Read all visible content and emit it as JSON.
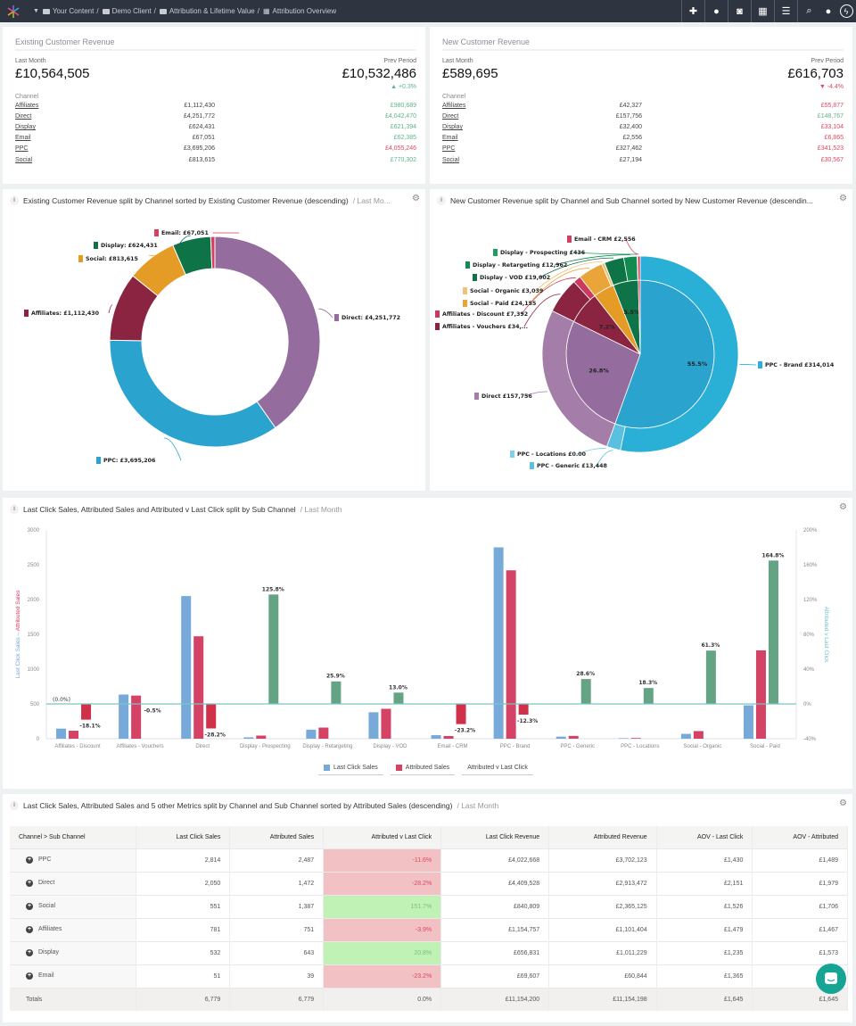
{
  "topbar": {
    "breadcrumbs": [
      "Your Content",
      "Demo Client",
      "Attribution & Lifetime Value",
      "Attribution Overview"
    ],
    "icons": [
      "plus-icon",
      "clock-icon",
      "camera-icon",
      "calendar-icon",
      "filter-icon",
      "search-icon",
      "user-icon",
      "bolt-icon"
    ]
  },
  "kpis": [
    {
      "title": "Existing Customer Revenue",
      "period_label": "Last Month",
      "value": "£10,564,505",
      "prev_label": "Prev Period",
      "prev_value": "£10,532,486",
      "change": "+0.3%",
      "change_dir": "up",
      "channel_header": "Channel",
      "channels": [
        {
          "name": "Affiliates",
          "value": "£1,112,430",
          "prev": "£980,689",
          "good": true
        },
        {
          "name": "Direct",
          "value": "£4,251,772",
          "prev": "£4,042,470",
          "good": true
        },
        {
          "name": "Display",
          "value": "£624,431",
          "prev": "£621,394",
          "good": true
        },
        {
          "name": "Email",
          "value": "£67,051",
          "prev": "£62,385",
          "good": true
        },
        {
          "name": "PPC",
          "value": "£3,695,206",
          "prev": "£4,055,246",
          "good": false
        },
        {
          "name": "Social",
          "value": "£813,615",
          "prev": "£770,302",
          "good": true
        }
      ]
    },
    {
      "title": "New Customer Revenue",
      "period_label": "Last Month",
      "value": "£589,695",
      "prev_label": "Prev Period",
      "prev_value": "£616,703",
      "change": "-4.4%",
      "change_dir": "down",
      "channel_header": "Channel",
      "channels": [
        {
          "name": "Affiliates",
          "value": "£42,327",
          "prev": "£55,877",
          "good": false
        },
        {
          "name": "Direct",
          "value": "£157,756",
          "prev": "£148,767",
          "good": true
        },
        {
          "name": "Display",
          "value": "£32,400",
          "prev": "£33,104",
          "good": false
        },
        {
          "name": "Email",
          "value": "£2,556",
          "prev": "£6,865",
          "good": false
        },
        {
          "name": "PPC",
          "value": "£327,462",
          "prev": "£341,523",
          "good": false
        },
        {
          "name": "Social",
          "value": "£27,194",
          "prev": "£30,567",
          "good": false
        }
      ]
    }
  ],
  "colors": {
    "good": "#5fb38a",
    "bad": "#e0475f",
    "Direct": "#946c9e",
    "PPC": "#2aa4cf",
    "Affiliates": "#8a2440",
    "Social": "#e59c26",
    "Display": "#0e7346",
    "Email": "#d63f5f",
    "last_click": "#77a9d9",
    "attributed": "#d44266",
    "ratio_pos": "#64a384",
    "ratio_neg": "#d0304a",
    "zero_line": "#7fc3c3"
  },
  "chart_data": [
    {
      "type": "pie",
      "variant": "donut",
      "title": "Existing Customer Revenue split by Channel sorted by Existing Customer Revenue (descending)",
      "subtitle": "/ Last Mo...",
      "slices": [
        {
          "label": "Direct: £4,251,772",
          "name": "Direct",
          "value": 4251772
        },
        {
          "label": "PPC: £3,695,206",
          "name": "PPC",
          "value": 3695206
        },
        {
          "label": "Affiliates: £1,112,430",
          "name": "Affiliates",
          "value": 1112430
        },
        {
          "label": "Social: £813,615",
          "name": "Social",
          "value": 813615
        },
        {
          "label": "Display: £624,431",
          "name": "Display",
          "value": 624431
        },
        {
          "label": "Email: £67,051",
          "name": "Email",
          "value": 67051
        }
      ]
    },
    {
      "type": "pie",
      "variant": "sunburst",
      "title": "New Customer Revenue split by Channel and Sub Channel sorted by New Customer Revenue (descendin...",
      "inner": [
        {
          "name": "PPC",
          "value": 327462,
          "pct": "55.5%"
        },
        {
          "name": "Direct",
          "value": 157756,
          "pct": "26.8%"
        },
        {
          "name": "Affiliates",
          "value": 42327,
          "pct": "7.2%"
        },
        {
          "name": "Social",
          "value": 27194,
          "pct": ""
        },
        {
          "name": "Display",
          "value": 32400,
          "pct": "5.5%"
        },
        {
          "name": "Email",
          "value": 2556,
          "pct": ""
        }
      ],
      "outer": [
        {
          "parent": "PPC",
          "label": "PPC - Brand £314,014",
          "value": 314014
        },
        {
          "parent": "PPC",
          "label": "PPC - Generic £13,448",
          "value": 13448
        },
        {
          "parent": "PPC",
          "label": "PPC - Locations £0.00",
          "value": 0
        },
        {
          "parent": "Direct",
          "label": "Direct £157,756",
          "value": 157756
        },
        {
          "parent": "Affiliates",
          "label": "Affiliates - Vouchers £34,...",
          "value": 34935
        },
        {
          "parent": "Affiliates",
          "label": "Affiliates - Discount £7,392",
          "value": 7392
        },
        {
          "parent": "Social",
          "label": "Social - Paid £24,155",
          "value": 24155
        },
        {
          "parent": "Social",
          "label": "Social - Organic £3,039",
          "value": 3039
        },
        {
          "parent": "Display",
          "label": "Display - VOD £19,002",
          "value": 19002
        },
        {
          "parent": "Display",
          "label": "Display - Retargeting £12,962",
          "value": 12962
        },
        {
          "parent": "Display",
          "label": "Display - Prospecting £436",
          "value": 436
        },
        {
          "parent": "Email",
          "label": "Email - CRM £2,556",
          "value": 2556
        }
      ]
    },
    {
      "type": "bar",
      "title": "Last Click Sales, Attributed Sales and Attributed v Last Click split by Sub Channel",
      "subtitle": "/ Last Month",
      "ylabel_left": [
        "Last Click Sales",
        "Attributed Sales"
      ],
      "ylabel_right": "Attributed v Last Click",
      "ylim": [
        0,
        3000
      ],
      "yticks": [
        0,
        500,
        1000,
        1500,
        2000,
        2500,
        3000
      ],
      "y2lim": [
        -40,
        200
      ],
      "y2ticks": [
        "-40%",
        "0%",
        "40%",
        "80%",
        "120%",
        "160%",
        "200%"
      ],
      "annotation": "(0.0%)",
      "categories": [
        "Affiliates - Discount",
        "Affiliates - Vouchers",
        "Direct",
        "Display - Prospecting",
        "Display - Retargeting",
        "Display - VOD",
        "Email - CRM",
        "PPC - Brand",
        "PPC - Generic",
        "PPC - Locations",
        "Social - Organic",
        "Social - Paid"
      ],
      "series": [
        {
          "name": "Last Click Sales",
          "values": [
            145,
            635,
            2050,
            20,
            130,
            380,
            51,
            2750,
            30,
            8,
            70,
            480
          ]
        },
        {
          "name": "Attributed Sales",
          "values": [
            115,
            620,
            1472,
            45,
            160,
            430,
            39,
            2420,
            40,
            10,
            110,
            1270
          ]
        },
        {
          "name": "Attributed v Last Click",
          "axis": "right",
          "values": [
            -18.1,
            -0.5,
            -28.2,
            125.8,
            25.9,
            13.0,
            -23.2,
            -12.3,
            28.6,
            18.3,
            61.3,
            164.8
          ],
          "labels": [
            "-18.1%",
            "-0.5%",
            "-28.2%",
            "125.8%",
            "25.9%",
            "13.0%",
            "-23.2%",
            "-12.3%",
            "28.6%",
            "18.3%",
            "61.3%",
            "164.8%"
          ]
        }
      ]
    }
  ],
  "table": {
    "title": "Last Click Sales, Attributed Sales and 5 other Metrics split by Channel and Sub Channel sorted by Attributed Sales (descending)",
    "subtitle": "/ Last Month",
    "columns": [
      "Channel > Sub Channel",
      "Last Click Sales",
      "Attributed Sales",
      "Attributed v Last Click",
      "Last Click Revenue",
      "Attributed Revenue",
      "AOV - Last Click",
      "AOV - Attributed"
    ],
    "rows": [
      [
        "PPC",
        "2,814",
        "2,487",
        "-11.6%",
        "£4,022,668",
        "£3,702,123",
        "£1,430",
        "£1,489"
      ],
      [
        "Direct",
        "2,050",
        "1,472",
        "-28.2%",
        "£4,409,528",
        "£2,913,472",
        "£2,151",
        "£1,979"
      ],
      [
        "Social",
        "551",
        "1,387",
        "151.7%",
        "£840,809",
        "£2,365,125",
        "£1,526",
        "£1,706"
      ],
      [
        "Affiliates",
        "781",
        "751",
        "-3.9%",
        "£1,154,757",
        "£1,101,404",
        "£1,479",
        "£1,467"
      ],
      [
        "Display",
        "532",
        "643",
        "20.8%",
        "£656,831",
        "£1,011,229",
        "£1,235",
        "£1,573"
      ],
      [
        "Email",
        "51",
        "39",
        "-23.2%",
        "£69,607",
        "£60,844",
        "£1,365",
        "£1,560"
      ]
    ],
    "totals": [
      "Totals",
      "6,779",
      "6,779",
      "0.0%",
      "£11,154,200",
      "£11,154,198",
      "£1,645",
      "£1,645"
    ]
  }
}
